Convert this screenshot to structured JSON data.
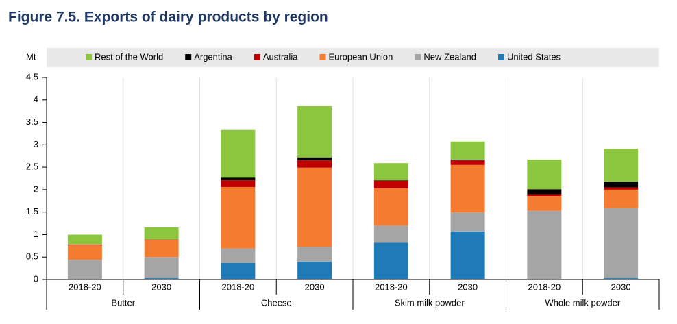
{
  "chart_data": {
    "type": "stacked-bar",
    "title": "Figure 7.5. Exports of dairy products by region",
    "y_label": "Mt",
    "categories": [
      "2018-20",
      "2030",
      "2018-20",
      "2030",
      "2018-20",
      "2030",
      "2018-20",
      "2030"
    ],
    "groups": [
      "Butter",
      "Cheese",
      "Skim milk powder",
      "Whole milk powder"
    ],
    "series": [
      {
        "name": "United States",
        "color": "#1f7ab8",
        "values": [
          0,
          0.03,
          0.37,
          0.4,
          0.82,
          1.07,
          0.01,
          0.03
        ]
      },
      {
        "name": "New Zealand",
        "color": "#a5a5a5",
        "values": [
          0.44,
          0.47,
          0.32,
          0.33,
          0.38,
          0.42,
          1.52,
          1.56
        ]
      },
      {
        "name": "European Union",
        "color": "#f47c30",
        "values": [
          0.32,
          0.38,
          1.37,
          1.76,
          0.83,
          1.06,
          0.33,
          0.41
        ]
      },
      {
        "name": "Australia",
        "color": "#c00000",
        "values": [
          0.02,
          0.01,
          0.15,
          0.16,
          0.17,
          0.1,
          0.04,
          0.05
        ]
      },
      {
        "name": "Argentina",
        "color": "#000000",
        "values": [
          0,
          0,
          0.06,
          0.07,
          0.01,
          0.02,
          0.11,
          0.13
        ]
      },
      {
        "name": "Rest of the World",
        "color": "#8cc63f",
        "values": [
          0.22,
          0.27,
          1.06,
          1.14,
          0.38,
          0.4,
          0.66,
          0.73
        ]
      }
    ],
    "ylim": [
      0,
      4.5
    ],
    "yticks": [
      0,
      0.5,
      1,
      1.5,
      2,
      2.5,
      3,
      3.5,
      4,
      4.5
    ]
  }
}
